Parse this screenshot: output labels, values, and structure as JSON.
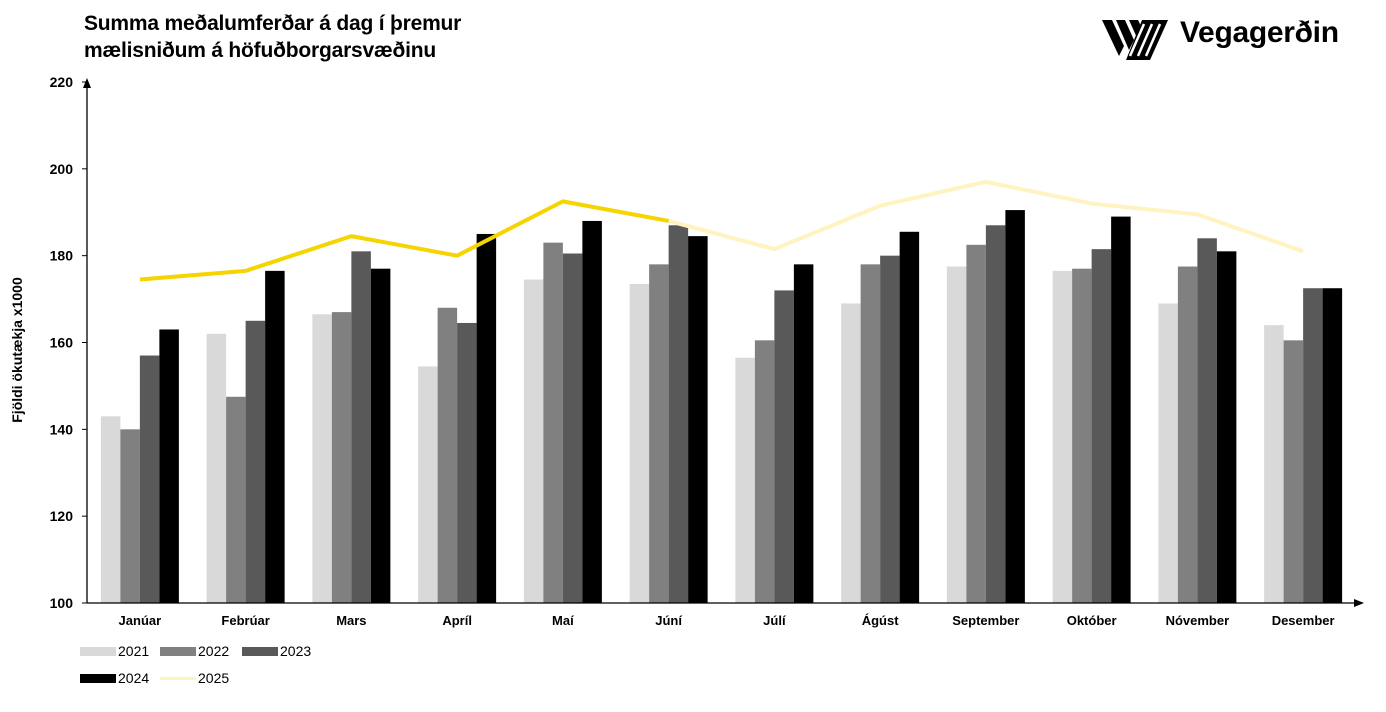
{
  "header": {
    "title_line1": "Summa meðalumferðar á dag í þremur",
    "title_line2": "mælisniðum á höfuðborgarsvæðinu",
    "logo_text": "Vegagerðin",
    "logo_icon": "vegagerdin-stripes-logo-icon"
  },
  "colors": {
    "s2021": "#d9d9d9",
    "s2022": "#808080",
    "s2023": "#595959",
    "s2024": "#000000",
    "s2025_a": "#f5d400",
    "s2025_b": "#fff3c2"
  },
  "chart_data": {
    "type": "bar",
    "title": "Summa meðalumferðar á dag í þremur mælisniðum á höfuðborgarsvæðinu",
    "xlabel": "",
    "ylabel": "Fjöldi ökutækja x1000",
    "ylim": [
      100,
      220
    ],
    "yticks": [
      100,
      120,
      140,
      160,
      180,
      200,
      220
    ],
    "grid": false,
    "legend_position": "bottom-left",
    "categories": [
      "Janúar",
      "Febrúar",
      "Mars",
      "Apríl",
      "Maí",
      "Júní",
      "Júlí",
      "Ágúst",
      "September",
      "Október",
      "Nóvember",
      "Desember"
    ],
    "series": [
      {
        "name": "2021",
        "type": "bar",
        "values": [
          143,
          162,
          166.5,
          154.5,
          174.5,
          173.5,
          156.5,
          169,
          177.5,
          176.5,
          169,
          164
        ]
      },
      {
        "name": "2022",
        "type": "bar",
        "values": [
          140,
          147.5,
          167,
          168,
          183,
          178,
          160.5,
          178,
          182.5,
          177,
          177.5,
          160.5
        ]
      },
      {
        "name": "2023",
        "type": "bar",
        "values": [
          157,
          165,
          181,
          164.5,
          180.5,
          187,
          172,
          180,
          187,
          181.5,
          184,
          172.5
        ]
      },
      {
        "name": "2024",
        "type": "bar",
        "values": [
          163,
          176.5,
          177,
          185,
          188,
          184.5,
          178,
          185.5,
          190.5,
          189,
          181,
          172.5
        ]
      },
      {
        "name": "2025",
        "type": "line",
        "values": [
          174.5,
          176.5,
          184.5,
          180,
          192.5,
          188,
          181.5,
          191.5,
          197,
          192,
          189.5,
          181
        ],
        "actual_months": 6
      }
    ]
  }
}
